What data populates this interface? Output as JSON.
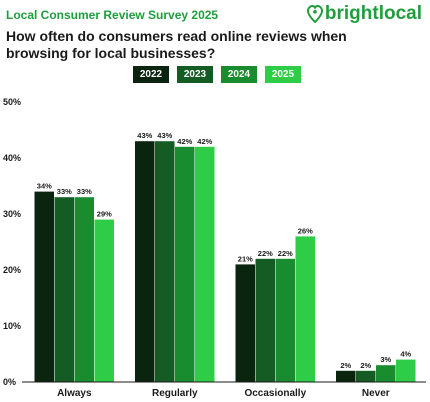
{
  "header": {
    "survey_label": "Local Consumer Review Survey 2025",
    "brand_name": "brightlocal",
    "brand_icon": "heart-location-pin-icon",
    "brand_color": "#1f9e3c"
  },
  "chart_data": {
    "type": "bar",
    "title": "How often do consumers read online reviews when browsing for local businesses?",
    "categories": [
      "Always",
      "Regularly",
      "Occasionally",
      "Never"
    ],
    "series": [
      {
        "name": "2022",
        "color": "#0b2410",
        "values": [
          34,
          43,
          21,
          2
        ]
      },
      {
        "name": "2023",
        "color": "#155c24",
        "values": [
          33,
          43,
          22,
          2
        ]
      },
      {
        "name": "2024",
        "color": "#1a8c30",
        "values": [
          33,
          42,
          22,
          3
        ]
      },
      {
        "name": "2025",
        "color": "#2ecc47",
        "values": [
          29,
          42,
          26,
          4
        ]
      }
    ],
    "value_suffix": "%",
    "ylim": [
      0,
      50
    ],
    "yticks": [
      0,
      10,
      20,
      30,
      40,
      50
    ],
    "ytick_labels": [
      "0%",
      "10%",
      "20%",
      "30%",
      "40%",
      "50%"
    ],
    "legend_position": "top-center",
    "grid": false
  }
}
